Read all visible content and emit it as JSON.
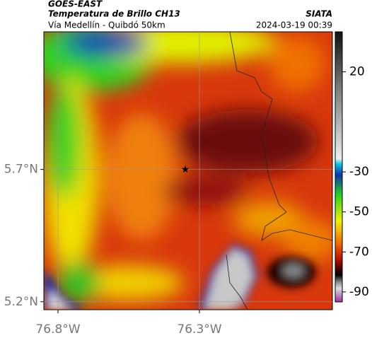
{
  "header": {
    "title": "GOES-EAST",
    "subtitle": "Temperatura de Brillo CH13",
    "route": "Vía Medellín - Quibdó 50km",
    "source": "SIATA",
    "datetime": "2024-03-19 00:39"
  },
  "map": {
    "xlim": [
      -76.85,
      -75.83
    ],
    "ylim": [
      5.17,
      6.22
    ],
    "xticks": [
      {
        "value": -76.8,
        "label": "76.8°W"
      },
      {
        "value": -76.3,
        "label": "76.3°W"
      }
    ],
    "yticks": [
      {
        "value": 5.2,
        "label": "5.2°N"
      },
      {
        "value": 5.7,
        "label": "5.7°N"
      }
    ],
    "marker": {
      "lon": -76.35,
      "lat": 5.7
    },
    "colorbar": {
      "clim": [
        -95,
        40
      ],
      "ticks": [
        20,
        -30,
        -50,
        -70,
        -90
      ]
    }
  }
}
